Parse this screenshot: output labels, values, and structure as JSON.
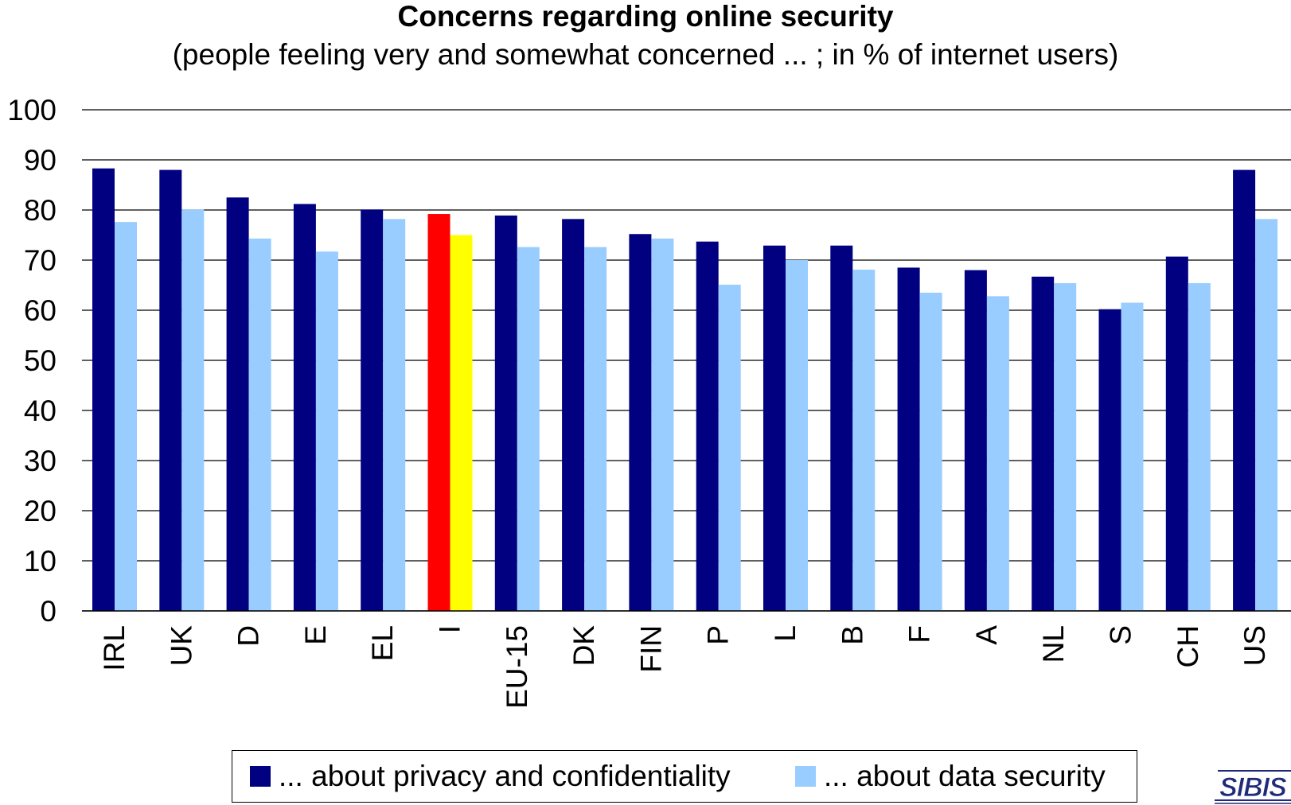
{
  "chart_data": {
    "type": "bar",
    "title": "Concerns regarding online security",
    "subtitle": "(people feeling very and somewhat concerned ... ; in % of internet users)",
    "categories": [
      "IRL",
      "UK",
      "D",
      "E",
      "EL",
      "I",
      "EU-15",
      "DK",
      "FIN",
      "P",
      "L",
      "B",
      "F",
      "A",
      "NL",
      "S",
      "CH",
      "US"
    ],
    "series": [
      {
        "name": "... about privacy and confidentiality",
        "color": "#000080",
        "values": [
          88.3,
          88.0,
          82.5,
          81.2,
          80.1,
          79.2,
          78.9,
          78.2,
          75.2,
          73.7,
          72.9,
          72.9,
          68.5,
          68.0,
          66.7,
          60.2,
          70.7,
          88.0
        ],
        "highlight": {
          "I": "#ff0000"
        }
      },
      {
        "name": "... about data security",
        "color": "#99ccff",
        "values": [
          77.6,
          80.1,
          74.3,
          71.7,
          78.2,
          75.0,
          72.6,
          72.6,
          74.3,
          65.1,
          70.0,
          68.1,
          63.5,
          62.8,
          65.4,
          61.5,
          65.4,
          78.2
        ],
        "highlight": {
          "I": "#ffff00"
        }
      }
    ],
    "ylim": [
      0,
      100
    ],
    "yticks": [
      0,
      10,
      20,
      30,
      40,
      50,
      60,
      70,
      80,
      90,
      100
    ],
    "xlabel": "",
    "ylabel": "",
    "grid": true,
    "legend_position": "bottom"
  },
  "logo_text": "SIBIS"
}
